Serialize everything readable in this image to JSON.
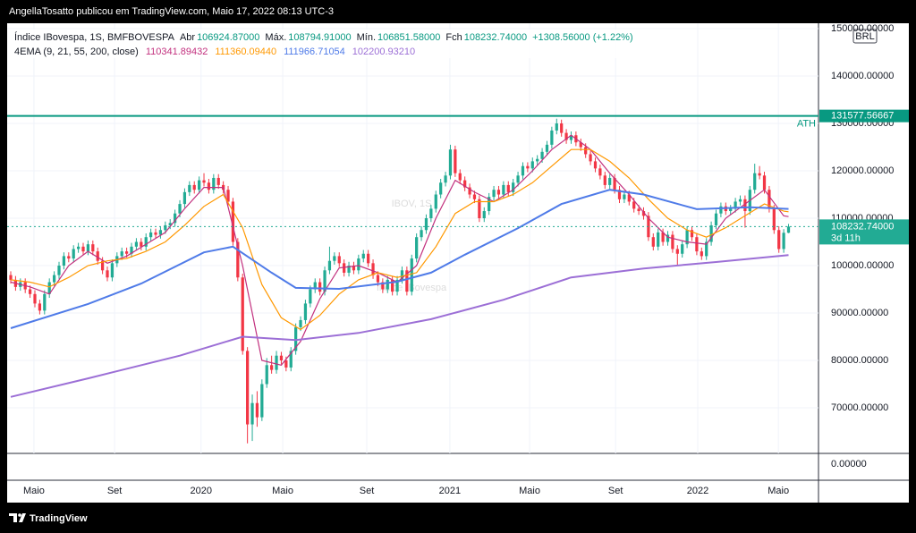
{
  "chart_data": {
    "type": "candlestick",
    "attribution": "AngellaTosatto publicou em TradingView.com, Maio 17, 2022 08:13 UTC-3",
    "symbol": "Índice IBovespa, 1S, BMFBOVESPA",
    "header_fields": [
      {
        "label": "Abr",
        "value": "106924.87000"
      },
      {
        "label": "Máx.",
        "value": "108794.91000"
      },
      {
        "label": "Mín.",
        "value": "106851.58000"
      },
      {
        "label": "Fch",
        "value": "108232.74000"
      }
    ],
    "change": "+1308.56000 (+1.22%)",
    "watermark": "IBOV, 1S",
    "watermark_subtitle": "Índice IBovespa",
    "currency": "BRL",
    "brand": "TradingView",
    "up_color": "#22ab94",
    "down_color": "#f23645",
    "xlim": [
      -0.74,
      167.2
    ],
    "xticks": [
      {
        "value": 4.8,
        "label": "Maio"
      },
      {
        "value": 21.5,
        "label": "Set"
      },
      {
        "value": 39.4,
        "label": "2020"
      },
      {
        "value": 56.3,
        "label": "Maio"
      },
      {
        "value": 73.7,
        "label": "Set"
      },
      {
        "value": 90.9,
        "label": "2021"
      },
      {
        "value": 107.4,
        "label": "Maio"
      },
      {
        "value": 125.2,
        "label": "Set"
      },
      {
        "value": 142.2,
        "label": "2022"
      },
      {
        "value": 158.9,
        "label": "Maio"
      }
    ],
    "ylim": [
      60377,
      150755
    ],
    "yticks": [
      {
        "value": 70000,
        "label": "70000.00000"
      },
      {
        "value": 80000,
        "label": "80000.00000"
      },
      {
        "value": 90000,
        "label": "90000.00000"
      },
      {
        "value": 100000,
        "label": "100000.00000"
      },
      {
        "value": 110000,
        "label": "110000.00000"
      },
      {
        "value": 120000,
        "label": "120000.00000"
      },
      {
        "value": 130000,
        "label": "130000.00000"
      },
      {
        "value": 140000,
        "label": "140000.00000"
      },
      {
        "value": 150000,
        "label": "150000.00000"
      }
    ],
    "lower_pane_ticks": [
      {
        "value": 0,
        "label": "0.00000"
      }
    ],
    "ath": {
      "value": 131577.56667,
      "label": "131577.56667",
      "name": "ATH",
      "color": "#089981"
    },
    "last_price": {
      "value": 108232.74,
      "label": "108232.74000",
      "countdown": "3d 11h",
      "color": "#22ab94"
    },
    "ohlc": [
      [
        98000,
        98800,
        96200,
        97000
      ],
      [
        97000,
        97800,
        94700,
        95500
      ],
      [
        95500,
        97300,
        94700,
        96500
      ],
      [
        96500,
        97300,
        94200,
        95000
      ],
      [
        95000,
        95800,
        93200,
        94000
      ],
      [
        94000,
        94800,
        91200,
        92000
      ],
      [
        92000,
        92800,
        89700,
        90500
      ],
      [
        90500,
        94800,
        89700,
        94000
      ],
      [
        94000,
        97300,
        93200,
        96500
      ],
      [
        96500,
        98800,
        95700,
        98000
      ],
      [
        98000,
        100800,
        97200,
        100000
      ],
      [
        100000,
        102800,
        99200,
        102000
      ],
      [
        102000,
        102800,
        100700,
        101500
      ],
      [
        101500,
        104300,
        100700,
        103500
      ],
      [
        103500,
        104800,
        102700,
        104000
      ],
      [
        104000,
        104800,
        102200,
        103000
      ],
      [
        103000,
        105300,
        102200,
        104500
      ],
      [
        104500,
        105300,
        102200,
        103000
      ],
      [
        103000,
        103800,
        100200,
        101000
      ],
      [
        101000,
        101800,
        98200,
        99000
      ],
      [
        99000,
        99800,
        96700,
        97500
      ],
      [
        97500,
        101300,
        96700,
        100500
      ],
      [
        100500,
        102800,
        99700,
        102000
      ],
      [
        102000,
        103800,
        101200,
        103000
      ],
      [
        103000,
        103800,
        101700,
        102500
      ],
      [
        102500,
        104800,
        101700,
        104000
      ],
      [
        104000,
        105800,
        103200,
        105000
      ],
      [
        105000,
        105800,
        103200,
        104000
      ],
      [
        104000,
        106800,
        103200,
        106000
      ],
      [
        106000,
        107800,
        105200,
        107000
      ],
      [
        107000,
        107800,
        105700,
        106500
      ],
      [
        106500,
        108300,
        105700,
        107500
      ],
      [
        107500,
        109300,
        106700,
        108500
      ],
      [
        108500,
        109800,
        107700,
        109000
      ],
      [
        109000,
        111800,
        108200,
        111000
      ],
      [
        111000,
        113800,
        110200,
        113000
      ],
      [
        113000,
        116300,
        112200,
        115500
      ],
      [
        115500,
        117800,
        114700,
        117000
      ],
      [
        117000,
        117800,
        115200,
        116000
      ],
      [
        116000,
        118800,
        115200,
        118000
      ],
      [
        118000,
        119500,
        116700,
        117500
      ],
      [
        117500,
        118300,
        115200,
        116000
      ],
      [
        116000,
        119300,
        115200,
        118500
      ],
      [
        118500,
        119300,
        116200,
        117000
      ],
      [
        117000,
        117800,
        115200,
        116000
      ],
      [
        116000,
        116800,
        112700,
        113500
      ],
      [
        113500,
        114300,
        104200,
        105000
      ],
      [
        105000,
        105800,
        96700,
        97500
      ],
      [
        97500,
        98300,
        81200,
        82000
      ],
      [
        82000,
        82800,
        62500,
        66500
      ],
      [
        66500,
        72800,
        63000,
        71000
      ],
      [
        71000,
        73500,
        66000,
        68000
      ],
      [
        68000,
        76000,
        67200,
        75000
      ],
      [
        75000,
        80500,
        74200,
        79000
      ],
      [
        79000,
        81000,
        77200,
        78000
      ],
      [
        78000,
        82000,
        77200,
        81000
      ],
      [
        81000,
        81800,
        79200,
        80000
      ],
      [
        80000,
        80800,
        77700,
        78500
      ],
      [
        78500,
        82800,
        77700,
        82000
      ],
      [
        82000,
        87800,
        81200,
        87000
      ],
      [
        87000,
        89300,
        86200,
        88500
      ],
      [
        88500,
        92800,
        87700,
        92000
      ],
      [
        92000,
        95800,
        91200,
        95000
      ],
      [
        95000,
        97300,
        94200,
        96500
      ],
      [
        96500,
        97300,
        93700,
        94500
      ],
      [
        94500,
        99800,
        93700,
        99000
      ],
      [
        99000,
        104000,
        98200,
        101000
      ],
      [
        101000,
        102800,
        100200,
        102000
      ],
      [
        102000,
        102800,
        99700,
        100500
      ],
      [
        100500,
        101300,
        97700,
        98500
      ],
      [
        98500,
        100800,
        97700,
        100000
      ],
      [
        100000,
        100800,
        98200,
        99000
      ],
      [
        99000,
        102300,
        98200,
        101500
      ],
      [
        101500,
        103300,
        100700,
        102500
      ],
      [
        102500,
        103300,
        99700,
        100500
      ],
      [
        100500,
        101300,
        97200,
        98000
      ],
      [
        98000,
        98800,
        95700,
        96500
      ],
      [
        96500,
        97300,
        94200,
        95000
      ],
      [
        95000,
        97800,
        94200,
        97000
      ],
      [
        97000,
        97800,
        93700,
        94500
      ],
      [
        94500,
        97800,
        93700,
        97000
      ],
      [
        97000,
        99800,
        96200,
        99000
      ],
      [
        99000,
        99800,
        93700,
        94500
      ],
      [
        94500,
        102300,
        93700,
        101500
      ],
      [
        101500,
        106800,
        100700,
        106000
      ],
      [
        106000,
        108300,
        105200,
        107500
      ],
      [
        107500,
        110800,
        106700,
        110000
      ],
      [
        110000,
        112800,
        109200,
        112000
      ],
      [
        112000,
        115800,
        111200,
        115000
      ],
      [
        115000,
        118300,
        114200,
        117500
      ],
      [
        117500,
        119800,
        116700,
        119000
      ],
      [
        119000,
        125500,
        118200,
        124500
      ],
      [
        124500,
        125300,
        118700,
        119500
      ],
      [
        119500,
        120300,
        117200,
        118000
      ],
      [
        118000,
        118800,
        115700,
        116500
      ],
      [
        116500,
        117300,
        114200,
        115000
      ],
      [
        115000,
        115800,
        113200,
        114000
      ],
      [
        114000,
        114800,
        109200,
        110000
      ],
      [
        110000,
        112300,
        109200,
        111500
      ],
      [
        111500,
        115300,
        110700,
        114500
      ],
      [
        114500,
        116800,
        113700,
        116000
      ],
      [
        116000,
        116800,
        114200,
        115000
      ],
      [
        115000,
        117800,
        114200,
        117000
      ],
      [
        117000,
        117800,
        114700,
        115500
      ],
      [
        115500,
        118300,
        114700,
        117500
      ],
      [
        117500,
        119800,
        116700,
        119000
      ],
      [
        119000,
        121800,
        118200,
        121000
      ],
      [
        121000,
        121800,
        119700,
        120500
      ],
      [
        120500,
        122800,
        119700,
        122000
      ],
      [
        122000,
        123300,
        121200,
        122500
      ],
      [
        122500,
        124800,
        121700,
        124000
      ],
      [
        124000,
        126300,
        123200,
        125500
      ],
      [
        125500,
        129300,
        124700,
        128500
      ],
      [
        128500,
        131000,
        127700,
        130000
      ],
      [
        130000,
        130800,
        127200,
        128000
      ],
      [
        128000,
        128800,
        125700,
        126500
      ],
      [
        126500,
        128300,
        125700,
        127500
      ],
      [
        127500,
        128300,
        125200,
        126000
      ],
      [
        126000,
        126800,
        124200,
        125000
      ],
      [
        125000,
        125800,
        122700,
        123500
      ],
      [
        123500,
        124300,
        121200,
        122000
      ],
      [
        122000,
        122800,
        119700,
        120500
      ],
      [
        120500,
        121300,
        118200,
        119000
      ],
      [
        119000,
        119800,
        116200,
        117000
      ],
      [
        117000,
        119300,
        116200,
        118500
      ],
      [
        118500,
        119300,
        115200,
        116000
      ],
      [
        116000,
        116800,
        113200,
        114000
      ],
      [
        114000,
        115800,
        113200,
        115000
      ],
      [
        115000,
        115800,
        112700,
        113500
      ],
      [
        113500,
        114300,
        111200,
        112000
      ],
      [
        112000,
        112800,
        110700,
        111500
      ],
      [
        111500,
        112300,
        109700,
        110500
      ],
      [
        110500,
        111300,
        105200,
        106000
      ],
      [
        106000,
        106800,
        103200,
        104000
      ],
      [
        104000,
        107800,
        103200,
        107000
      ],
      [
        107000,
        107800,
        104200,
        105000
      ],
      [
        105000,
        107300,
        104200,
        106500
      ],
      [
        106500,
        107300,
        102700,
        103500
      ],
      [
        103500,
        104300,
        100000,
        102500
      ],
      [
        102500,
        105300,
        101700,
        104500
      ],
      [
        104500,
        108300,
        103700,
        107500
      ],
      [
        107500,
        108300,
        105200,
        106000
      ],
      [
        106000,
        106800,
        102200,
        103000
      ],
      [
        103000,
        103800,
        101200,
        102000
      ],
      [
        102000,
        105800,
        101200,
        105000
      ],
      [
        105000,
        109300,
        104200,
        108500
      ],
      [
        108500,
        111800,
        107700,
        111000
      ],
      [
        111000,
        113300,
        110200,
        112500
      ],
      [
        112500,
        113300,
        110700,
        111500
      ],
      [
        111500,
        112800,
        110700,
        112000
      ],
      [
        112000,
        114300,
        111200,
        113500
      ],
      [
        113500,
        114800,
        112700,
        114000
      ],
      [
        114000,
        114800,
        108000,
        111500
      ],
      [
        111500,
        116800,
        110700,
        116000
      ],
      [
        116000,
        121500,
        115200,
        119500
      ],
      [
        119500,
        121000,
        118200,
        119000
      ],
      [
        119000,
        119800,
        115200,
        116000
      ],
      [
        116000,
        116800,
        111200,
        112000
      ],
      [
        112000,
        112800,
        106700,
        107500
      ],
      [
        107500,
        108300,
        102700,
        103500
      ],
      [
        103500,
        107700,
        102700,
        106924
      ],
      [
        106924.87,
        108794.91,
        106851.58,
        108232.74
      ]
    ],
    "indicator": "4EMA (9, 21, 55, 200, close)",
    "series": [
      {
        "color": "#c2307e",
        "last_label": "110341.89432",
        "x": [
          0,
          4,
          8,
          12,
          16,
          20,
          24,
          28,
          32,
          36,
          40,
          44,
          48,
          52,
          56,
          60,
          64,
          68,
          72,
          76,
          80,
          84,
          88,
          92,
          96,
          100,
          104,
          108,
          112,
          116,
          120,
          124,
          128,
          132,
          136,
          140,
          144,
          148,
          152,
          156,
          160,
          161
        ],
        "values": [
          96500,
          95500,
          94000,
          100000,
          103000,
          100500,
          102000,
          104500,
          107000,
          112000,
          116500,
          116500,
          100000,
          80000,
          79000,
          84000,
          93000,
          99500,
          100000,
          98500,
          96500,
          100000,
          110000,
          118000,
          115500,
          113500,
          116000,
          120000,
          124500,
          127500,
          124500,
          119500,
          115000,
          110000,
          106000,
          105000,
          104500,
          110000,
          113000,
          116000,
          110500,
          110341.89432
        ]
      },
      {
        "color": "#ff9800",
        "last_label": "111360.09440",
        "x": [
          0,
          4,
          8,
          12,
          16,
          20,
          24,
          28,
          32,
          36,
          40,
          44,
          48,
          52,
          56,
          60,
          64,
          68,
          72,
          76,
          80,
          84,
          88,
          92,
          96,
          100,
          104,
          108,
          112,
          116,
          120,
          124,
          128,
          132,
          136,
          140,
          144,
          148,
          152,
          156,
          160,
          161
        ],
        "values": [
          97000,
          96500,
          95500,
          97500,
          100000,
          101000,
          101500,
          103000,
          105000,
          108500,
          112500,
          115000,
          108000,
          96000,
          89000,
          86500,
          89500,
          94000,
          97000,
          98500,
          97500,
          98500,
          104000,
          111000,
          113500,
          113500,
          115000,
          117500,
          121000,
          124500,
          124500,
          122000,
          118500,
          114000,
          110000,
          107500,
          106000,
          108000,
          110500,
          113000,
          111500,
          111360.0944
        ]
      },
      {
        "color": "#4f7be8",
        "last_label": "111966.71054",
        "x": [
          0,
          16,
          27,
          40,
          46,
          54,
          59,
          68,
          80,
          87,
          94,
          105,
          114,
          124,
          131,
          142,
          153,
          161
        ],
        "values": [
          86800,
          91900,
          96200,
          102800,
          104000,
          98500,
          95300,
          95100,
          96600,
          98500,
          102300,
          107900,
          113000,
          116000,
          115000,
          111900,
          112300,
          111966.71054
        ]
      },
      {
        "color": "#9c6fd6",
        "last_label": "102200.93210",
        "x": [
          0,
          16,
          35,
          48,
          59,
          72,
          87,
          102,
          116,
          131,
          146,
          161
        ],
        "values": [
          72300,
          76200,
          81000,
          85000,
          84300,
          85800,
          88700,
          92800,
          97500,
          99400,
          100750,
          102200.9321
        ]
      }
    ]
  }
}
